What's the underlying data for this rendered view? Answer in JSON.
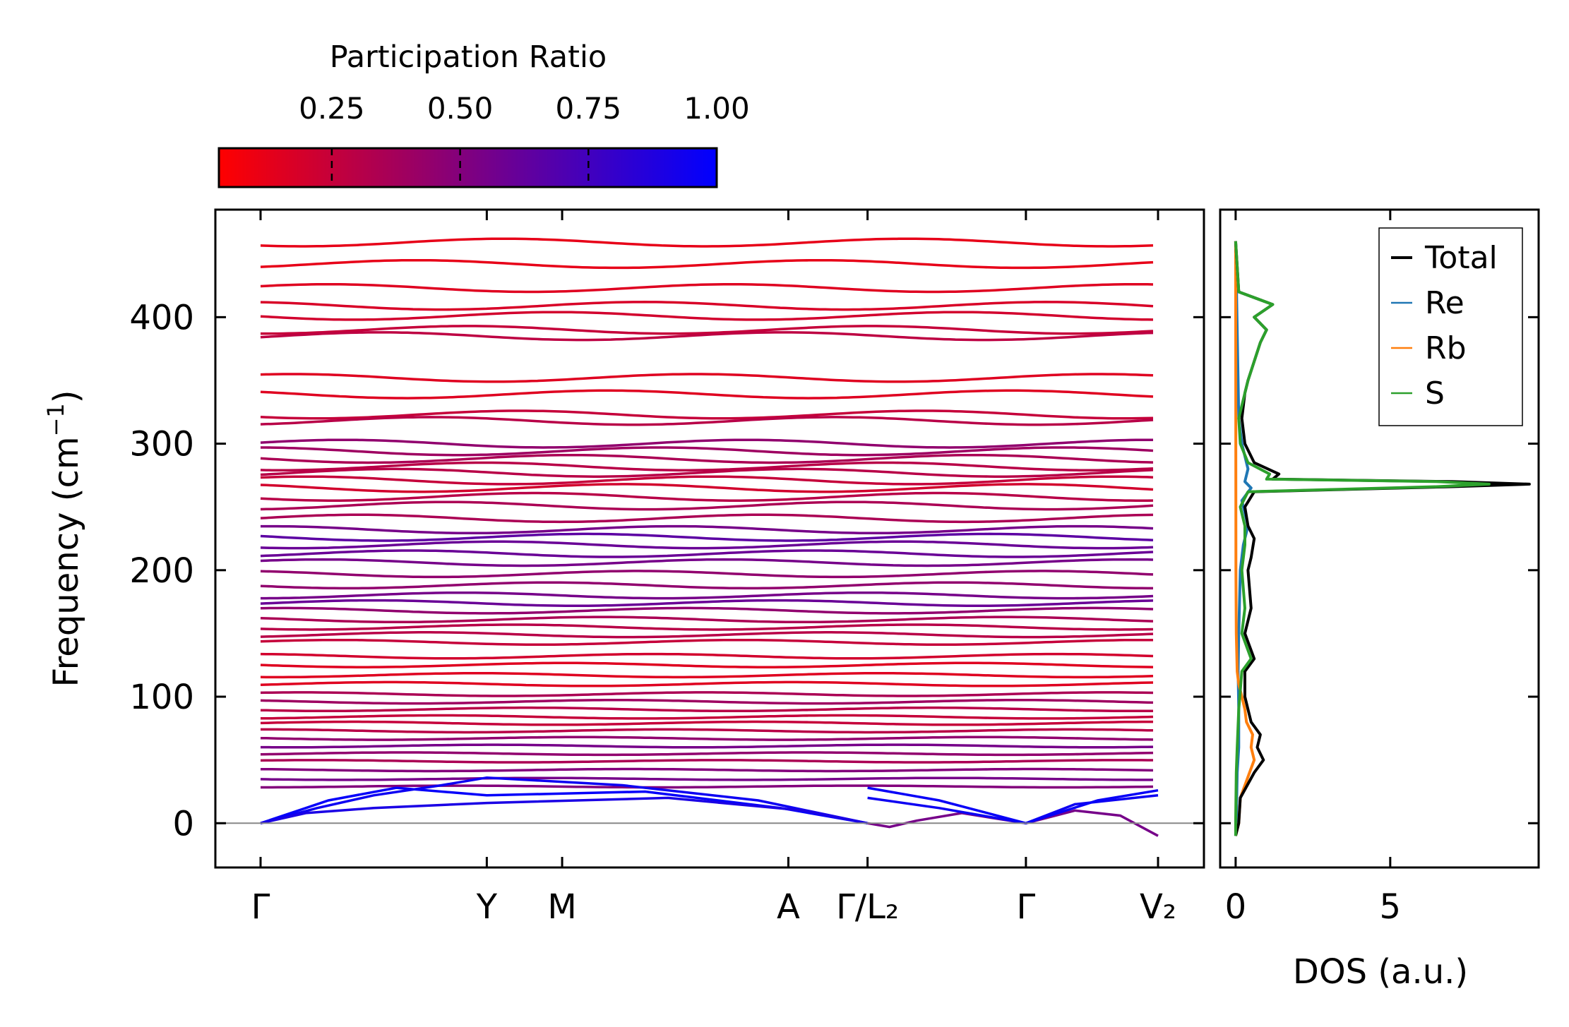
{
  "chart_data": [
    {
      "type": "line",
      "panel": "band-structure",
      "ylabel": "Frequency (cm",
      "ylabel_sup": "−1",
      "ylabel_close": ")",
      "ylim": [
        -35,
        485
      ],
      "yticks": [
        0,
        100,
        200,
        300,
        400
      ],
      "ytick_labels": [
        "0",
        "100",
        "200",
        "300",
        "400"
      ],
      "kpath": [
        {
          "label": "Γ",
          "pos": 0.0
        },
        {
          "label": "Y",
          "pos": 1.0
        },
        {
          "label": "M",
          "pos": 1.333
        },
        {
          "label": "A",
          "pos": 2.333
        },
        {
          "label": "Γ/L₂",
          "pos": 2.683
        },
        {
          "label": "Γ",
          "pos": 3.383
        },
        {
          "label": "V₂",
          "pos": 3.967
        }
      ],
      "zero_line": 0,
      "colorbar": {
        "title": "Participation Ratio",
        "ticks": [
          0.25,
          0.5,
          0.75,
          1.0
        ],
        "tick_labels": [
          "0.25",
          "0.50",
          "0.75",
          "1.00"
        ],
        "range": [
          0.03,
          1.0
        ],
        "color_low": "#ff0000",
        "color_high": "#0000ff"
      },
      "bands": [
        {
          "freq": 459,
          "pr": 0.12
        },
        {
          "freq": 442,
          "pr": 0.12
        },
        {
          "freq": 423,
          "pr": 0.15
        },
        {
          "freq": 409,
          "pr": 0.18
        },
        {
          "freq": 401,
          "pr": 0.2
        },
        {
          "freq": 390,
          "pr": 0.25
        },
        {
          "freq": 385,
          "pr": 0.28
        },
        {
          "freq": 352,
          "pr": 0.15
        },
        {
          "freq": 339,
          "pr": 0.15
        },
        {
          "freq": 323,
          "pr": 0.25
        },
        {
          "freq": 318,
          "pr": 0.3
        },
        {
          "freq": 300,
          "pr": 0.45
        },
        {
          "freq": 294,
          "pr": 0.4
        },
        {
          "freq": 288,
          "pr": 0.35
        },
        {
          "freq": 282,
          "pr": 0.3
        },
        {
          "freq": 277,
          "pr": 0.3
        },
        {
          "freq": 271,
          "pr": 0.25
        },
        {
          "freq": 265,
          "pr": 0.2
        },
        {
          "freq": 258,
          "pr": 0.3
        },
        {
          "freq": 251,
          "pr": 0.35
        },
        {
          "freq": 241,
          "pr": 0.35
        },
        {
          "freq": 232,
          "pr": 0.55
        },
        {
          "freq": 226,
          "pr": 0.65
        },
        {
          "freq": 220,
          "pr": 0.6
        },
        {
          "freq": 213,
          "pr": 0.6
        },
        {
          "freq": 206,
          "pr": 0.55
        },
        {
          "freq": 197,
          "pr": 0.45
        },
        {
          "freq": 188,
          "pr": 0.45
        },
        {
          "freq": 180,
          "pr": 0.55
        },
        {
          "freq": 174,
          "pr": 0.6
        },
        {
          "freq": 168,
          "pr": 0.45
        },
        {
          "freq": 161,
          "pr": 0.35
        },
        {
          "freq": 155,
          "pr": 0.3
        },
        {
          "freq": 149,
          "pr": 0.3
        },
        {
          "freq": 143,
          "pr": 0.25
        },
        {
          "freq": 132,
          "pr": 0.2
        },
        {
          "freq": 125,
          "pr": 0.15
        },
        {
          "freq": 117,
          "pr": 0.15
        },
        {
          "freq": 110,
          "pr": 0.15
        },
        {
          "freq": 102,
          "pr": 0.35
        },
        {
          "freq": 96,
          "pr": 0.4
        },
        {
          "freq": 90,
          "pr": 0.3
        },
        {
          "freq": 84,
          "pr": 0.25
        },
        {
          "freq": 79,
          "pr": 0.25
        },
        {
          "freq": 73,
          "pr": 0.3
        },
        {
          "freq": 67,
          "pr": 0.45
        },
        {
          "freq": 61,
          "pr": 0.55
        },
        {
          "freq": 55,
          "pr": 0.45
        },
        {
          "freq": 49,
          "pr": 0.35
        },
        {
          "freq": 42,
          "pr": 0.5
        },
        {
          "freq": 35,
          "pr": 0.55
        },
        {
          "freq": 29,
          "pr": 0.5
        }
      ]
    },
    {
      "type": "line",
      "panel": "dos",
      "xlabel": "DOS (a.u.)",
      "xlim": [
        -0.5,
        9.8
      ],
      "xticks": [
        0,
        5
      ],
      "xtick_labels": [
        "0",
        "5"
      ],
      "ylim": [
        -35,
        485
      ],
      "legend_position": "top-right",
      "series": [
        {
          "name": "Total",
          "color": "#000000",
          "freq": [
            -10,
            0,
            20,
            40,
            50,
            60,
            70,
            80,
            90,
            100,
            120,
            130,
            150,
            170,
            200,
            210,
            225,
            235,
            250,
            262,
            266,
            268,
            270,
            272,
            276,
            285,
            300,
            320,
            340,
            350,
            380,
            390,
            400,
            410,
            420,
            460
          ],
          "value": [
            0.0,
            0.1,
            0.15,
            0.6,
            0.9,
            0.7,
            0.8,
            0.5,
            0.4,
            0.3,
            0.3,
            0.6,
            0.3,
            0.5,
            0.4,
            0.5,
            0.6,
            0.4,
            0.3,
            0.6,
            7.0,
            9.5,
            7.0,
            1.2,
            1.4,
            0.6,
            0.3,
            0.2,
            0.3,
            0.4,
            0.8,
            1.0,
            0.6,
            1.2,
            0.1,
            0.0
          ]
        },
        {
          "name": "Re",
          "color": "#1f77b4",
          "freq": [
            -10,
            0,
            40,
            60,
            90,
            120,
            150,
            200,
            220,
            235,
            255,
            265,
            270,
            280,
            300,
            320,
            460
          ],
          "value": [
            0.0,
            0.02,
            0.05,
            0.1,
            0.1,
            0.08,
            0.1,
            0.15,
            0.25,
            0.4,
            0.2,
            0.5,
            0.3,
            0.4,
            0.2,
            0.1,
            0.0
          ]
        },
        {
          "name": "Rb",
          "color": "#ff7f0e",
          "freq": [
            -10,
            0,
            20,
            40,
            50,
            60,
            70,
            80,
            90,
            100,
            110,
            120,
            150,
            200,
            460
          ],
          "value": [
            0.0,
            0.1,
            0.15,
            0.45,
            0.6,
            0.5,
            0.55,
            0.35,
            0.3,
            0.2,
            0.1,
            0.05,
            0.02,
            0.01,
            0.0
          ]
        },
        {
          "name": "S",
          "color": "#2ca02c",
          "freq": [
            -10,
            0,
            40,
            60,
            90,
            120,
            130,
            150,
            170,
            200,
            220,
            235,
            250,
            262,
            266,
            268,
            270,
            272,
            276,
            285,
            300,
            320,
            340,
            350,
            380,
            390,
            400,
            410,
            420,
            460
          ],
          "value": [
            0.0,
            0.0,
            0.02,
            0.05,
            0.1,
            0.2,
            0.5,
            0.2,
            0.3,
            0.2,
            0.3,
            0.3,
            0.15,
            0.4,
            6.5,
            8.2,
            6.5,
            1.0,
            1.1,
            0.4,
            0.15,
            0.1,
            0.3,
            0.4,
            0.8,
            1.0,
            0.6,
            1.2,
            0.1,
            0.0
          ]
        }
      ]
    }
  ]
}
